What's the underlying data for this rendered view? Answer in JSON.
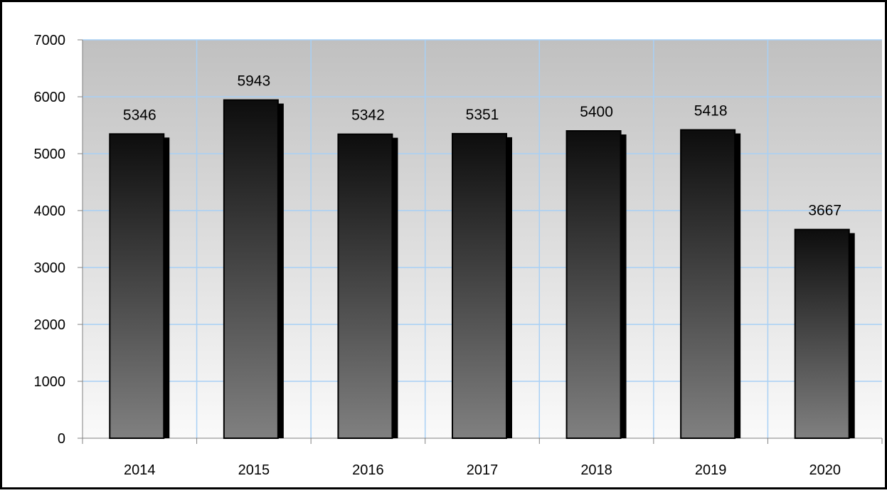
{
  "chart_data": {
    "type": "bar",
    "categories": [
      "2014",
      "2015",
      "2016",
      "2017",
      "2018",
      "2019",
      "2020"
    ],
    "values": [
      5346,
      5943,
      5342,
      5351,
      5400,
      5418,
      3667
    ],
    "data_labels": [
      "5346",
      "5943",
      "5342",
      "5351",
      "5400",
      "5418",
      "3667"
    ],
    "title": "",
    "xlabel": "",
    "ylabel": "",
    "ylim": [
      0,
      7000
    ],
    "yticks": [
      "0",
      "1000",
      "2000",
      "3000",
      "4000",
      "5000",
      "6000",
      "7000"
    ],
    "grid": true,
    "legend": "none",
    "colors": {
      "bar_top": "#0d0d0d",
      "bar_bottom": "#808080",
      "plot_bg_top": "#c0c0c0",
      "plot_bg_bottom": "#fafafa",
      "grid": "#a8d0f5",
      "frame": "#000000"
    }
  }
}
